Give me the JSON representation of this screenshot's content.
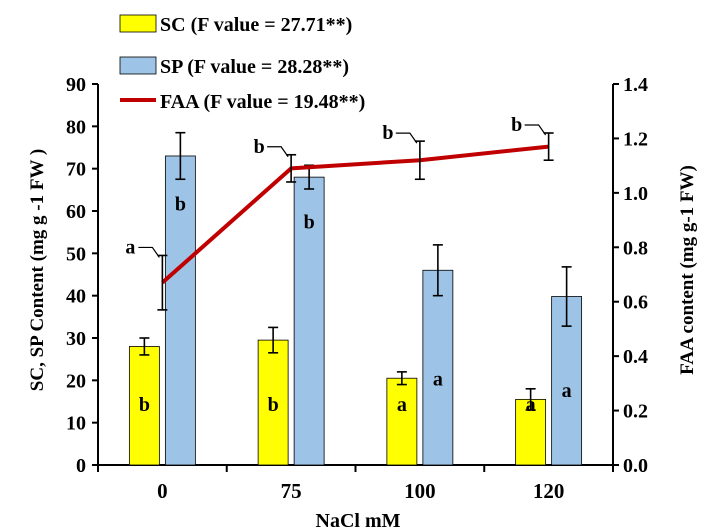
{
  "chart_data": {
    "type": "bar",
    "xlabel": "NaCl mM",
    "ylabel_left": "SC,  SP Content (mg g -1 FW )",
    "ylabel_right": "FAA content (mg g-1 FW)",
    "categories": [
      "0",
      "75",
      "100",
      "120"
    ],
    "ylim_left": [
      0,
      90
    ],
    "ylim_right": [
      0.0,
      1.4
    ],
    "left_ticks": [
      "0",
      "10",
      "20",
      "30",
      "40",
      "50",
      "60",
      "70",
      "80",
      "90"
    ],
    "right_ticks": [
      "0.0",
      "0.2",
      "0.4",
      "0.6",
      "0.8",
      "1.0",
      "1.2",
      "1.4"
    ],
    "grid": false,
    "legend_position": "top-left",
    "series": [
      {
        "name": "SC",
        "legend_label": "SC (F value = 27.71**)",
        "kind": "bar",
        "axis": "left",
        "color": "#FFFF00",
        "values": [
          28.0,
          29.5,
          20.5,
          15.5
        ],
        "errors": [
          2.0,
          3.0,
          1.5,
          2.5
        ],
        "letters": [
          "b",
          "b",
          "a",
          "a"
        ]
      },
      {
        "name": "SP",
        "legend_label": "SP  (F value = 28.28**)",
        "kind": "bar",
        "axis": "left",
        "color": "#9DC3E6",
        "values": [
          73.0,
          68.0,
          46.0,
          39.8
        ],
        "errors": [
          5.5,
          2.8,
          6.0,
          7.0
        ],
        "letters": [
          "b",
          "b",
          "a",
          "a"
        ]
      },
      {
        "name": "FAA",
        "legend_label": "FAA  (F value = 19.48**)",
        "kind": "line",
        "axis": "right",
        "color": "#C00000",
        "values": [
          0.67,
          1.09,
          1.12,
          1.17
        ],
        "errors": [
          0.1,
          0.05,
          0.07,
          0.05
        ],
        "letters": [
          "a",
          "b",
          "b",
          "b"
        ]
      }
    ]
  }
}
